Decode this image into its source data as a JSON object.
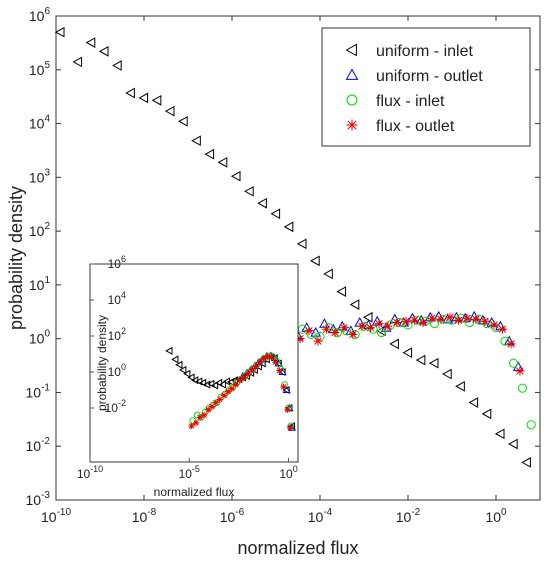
{
  "chart_data": {
    "type": "scatter",
    "xlabel": "normalized flux",
    "ylabel": "probability density",
    "x_scale": "log",
    "y_scale": "log",
    "xlim": [
      1e-10,
      10
    ],
    "ylim": [
      0.001,
      1000000
    ],
    "x_ticks": [
      {
        "base": "10",
        "exp": "-10"
      },
      {
        "base": "10",
        "exp": "-8"
      },
      {
        "base": "10",
        "exp": "-6"
      },
      {
        "base": "10",
        "exp": "-4"
      },
      {
        "base": "10",
        "exp": "-2"
      },
      {
        "base": "10",
        "exp": "0"
      }
    ],
    "y_ticks": [
      {
        "base": "10",
        "exp": "-3"
      },
      {
        "base": "10",
        "exp": "-2"
      },
      {
        "base": "10",
        "exp": "-1"
      },
      {
        "base": "10",
        "exp": "0"
      },
      {
        "base": "10",
        "exp": "1"
      },
      {
        "base": "10",
        "exp": "2"
      },
      {
        "base": "10",
        "exp": "3"
      },
      {
        "base": "10",
        "exp": "4"
      },
      {
        "base": "10",
        "exp": "5"
      },
      {
        "base": "10",
        "exp": "6"
      }
    ],
    "legend_position": "top-right",
    "series": [
      {
        "name": "uniform - inlet",
        "marker": "triangle-left",
        "color": "#000000",
        "x": [
          1.26e-10,
          3.16e-10,
          6.31e-10,
          1.26e-09,
          2.51e-09,
          5.01e-09,
          1e-08,
          2e-08,
          3.98e-08,
          7.94e-08,
          1.58e-07,
          3.16e-07,
          6.31e-07,
          1.26e-06,
          2.51e-06,
          5.01e-06,
          1e-05,
          2e-05,
          3.98e-05,
          7.94e-05,
          0.000158,
          0.000316,
          0.000631,
          0.00126,
          0.00251,
          0.00501,
          0.01,
          0.02,
          0.0398,
          0.0794,
          0.158,
          0.316,
          0.631,
          1.26,
          2.51,
          5.01
        ],
        "y": [
          500000,
          140000,
          320000,
          220000,
          120000,
          37000,
          30000,
          27000,
          17000,
          11000,
          4800,
          2700,
          1900,
          1050,
          550,
          330,
          210,
          120,
          58,
          28,
          16,
          7.5,
          4.3,
          2.5,
          1.4,
          0.8,
          0.55,
          0.4,
          0.35,
          0.22,
          0.13,
          0.065,
          0.04,
          0.017,
          0.011,
          0.005
        ]
      },
      {
        "name": "uniform - outlet",
        "marker": "triangle-up",
        "color": "#0000ee",
        "x": [
          1.2e-05,
          2e-05,
          3.2e-05,
          5e-05,
          8e-05,
          0.000126,
          0.0002,
          0.00032,
          0.0005,
          0.0008,
          0.00126,
          0.002,
          0.0032,
          0.005,
          0.008,
          0.0126,
          0.02,
          0.032,
          0.05,
          0.08,
          0.126,
          0.2,
          0.32,
          0.5,
          0.8,
          1.26,
          2,
          3.2
        ],
        "y": [
          1.2,
          1.4,
          1.1,
          1.6,
          1.3,
          1.9,
          1.5,
          1.7,
          1.4,
          2.0,
          1.8,
          2.1,
          1.6,
          2.3,
          2.0,
          2.4,
          2.2,
          2.5,
          2.6,
          2.3,
          2.5,
          2.4,
          2.6,
          2.2,
          2.0,
          1.7,
          0.9,
          0.3
        ]
      },
      {
        "name": "flux - inlet",
        "marker": "circle",
        "color": "#00dd00",
        "x": [
          1.5e-05,
          2.5e-05,
          4e-05,
          6.3e-05,
          0.0001,
          0.00016,
          0.00025,
          0.0004,
          0.00063,
          0.001,
          0.0016,
          0.0025,
          0.004,
          0.0063,
          0.01,
          0.016,
          0.025,
          0.04,
          0.063,
          0.1,
          0.16,
          0.25,
          0.4,
          0.63,
          1,
          1.6,
          2.5,
          4,
          6.3
        ],
        "y": [
          1.3,
          1.0,
          1.5,
          1.2,
          1.1,
          1.6,
          1.3,
          1.4,
          1.2,
          1.7,
          1.5,
          1.3,
          1.8,
          2.0,
          1.8,
          2.2,
          2.1,
          1.9,
          2.3,
          2.2,
          2.4,
          2.0,
          2.3,
          1.9,
          1.6,
          0.9,
          0.35,
          0.12,
          0.025
        ]
      },
      {
        "name": "flux - outlet",
        "marker": "asterisk",
        "color": "#ee0000",
        "x": [
          1.3e-05,
          2.2e-05,
          3.5e-05,
          5.6e-05,
          9e-05,
          0.00014,
          0.00022,
          0.00035,
          0.00056,
          0.0009,
          0.0014,
          0.0022,
          0.0035,
          0.0056,
          0.009,
          0.014,
          0.022,
          0.035,
          0.056,
          0.09,
          0.14,
          0.22,
          0.35,
          0.56,
          0.9,
          1.4,
          2.2,
          3.5
        ],
        "y": [
          1.1,
          1.3,
          1.0,
          1.4,
          0.9,
          1.5,
          1.3,
          1.6,
          1.2,
          1.7,
          1.6,
          1.9,
          1.7,
          2.0,
          2.1,
          2.2,
          2.0,
          2.4,
          2.3,
          2.5,
          2.2,
          2.4,
          2.3,
          2.1,
          1.8,
          1.5,
          0.8,
          0.25
        ]
      }
    ],
    "inset": {
      "xlabel": "normalized flux",
      "ylabel": "probability density",
      "x_scale": "log",
      "y_scale": "log",
      "xlim": [
        1e-10,
        3
      ],
      "ylim": [
        1e-05,
        1000000.0
      ],
      "x_ticks": [
        {
          "base": "10",
          "exp": "-10"
        },
        {
          "base": "10",
          "exp": "-5"
        },
        {
          "base": "10",
          "exp": "0"
        }
      ],
      "y_ticks": [
        {
          "base": "10",
          "exp": "-2"
        },
        {
          "base": "10",
          "exp": "0"
        },
        {
          "base": "10",
          "exp": "2"
        },
        {
          "base": "10",
          "exp": "4"
        },
        {
          "base": "10",
          "exp": "6"
        }
      ],
      "series": [
        {
          "name": "uniform - inlet",
          "x": [
            1e-06,
            2e-06,
            3.2e-06,
            5e-06,
            8e-06,
            1.3e-05,
            2e-05,
            3.2e-05,
            5e-05,
            8e-05,
            0.00013,
            0.0002,
            0.00032,
            0.0005,
            0.0008,
            0.0013,
            0.002,
            0.0032,
            0.005,
            0.008,
            0.013,
            0.02,
            0.032,
            0.05,
            0.08,
            0.13,
            0.2,
            0.32,
            0.5,
            0.8,
            1.1,
            1.5
          ],
          "y": [
            15,
            5,
            2.5,
            1.3,
            0.8,
            0.5,
            0.35,
            0.3,
            0.25,
            0.2,
            0.22,
            0.18,
            0.25,
            0.2,
            0.3,
            0.28,
            0.35,
            0.4,
            0.5,
            0.6,
            0.9,
            1.3,
            2.0,
            3.0,
            5.0,
            7.0,
            6.0,
            3.0,
            1.0,
            0.1,
            0.01,
            0.001
          ]
        },
        {
          "name": "uniform - outlet",
          "x": [
            0.005,
            0.008,
            0.013,
            0.02,
            0.032,
            0.05,
            0.08,
            0.13,
            0.2,
            0.32,
            0.5,
            0.8,
            1.1,
            1.5
          ],
          "y": [
            0.6,
            0.9,
            1.4,
            2.2,
            3.5,
            5.0,
            7.5,
            8.0,
            6.0,
            3.0,
            1.0,
            0.1,
            0.01,
            0.0008
          ]
        },
        {
          "name": "flux - inlet",
          "x": [
            1.5e-05,
            2.5e-05,
            4e-05,
            6.3e-05,
            0.0001,
            0.00016,
            0.00025,
            0.0004,
            0.00063,
            0.001,
            0.0016,
            0.0025,
            0.004,
            0.0063,
            0.01,
            0.016,
            0.025,
            0.04,
            0.063,
            0.1,
            0.16,
            0.25,
            0.4,
            0.63,
            1,
            1.3
          ],
          "y": [
            0.002,
            0.004,
            0.003,
            0.006,
            0.01,
            0.015,
            0.02,
            0.04,
            0.06,
            0.1,
            0.15,
            0.25,
            0.4,
            0.6,
            1.0,
            1.5,
            2.5,
            4.0,
            6.0,
            8.0,
            7.0,
            4.0,
            1.5,
            0.2,
            0.01,
            0.001
          ]
        },
        {
          "name": "flux - outlet",
          "x": [
            1.3e-05,
            2.2e-05,
            3.5e-05,
            5.6e-05,
            9e-05,
            0.00014,
            0.00022,
            0.00035,
            0.00056,
            0.0009,
            0.0014,
            0.0022,
            0.0035,
            0.0056,
            0.009,
            0.014,
            0.022,
            0.035,
            0.056,
            0.09,
            0.14,
            0.22,
            0.35,
            0.56,
            0.9,
            1.2
          ],
          "y": [
            0.001,
            0.0015,
            0.003,
            0.004,
            0.008,
            0.012,
            0.02,
            0.03,
            0.05,
            0.08,
            0.12,
            0.2,
            0.35,
            0.5,
            0.8,
            1.3,
            2.0,
            3.5,
            5.5,
            7.5,
            6.5,
            3.5,
            1.2,
            0.15,
            0.008,
            0.0008
          ]
        }
      ]
    }
  }
}
